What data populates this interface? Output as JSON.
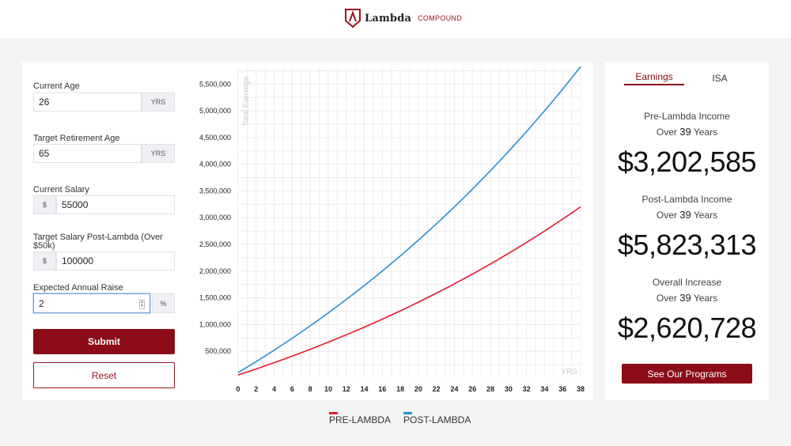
{
  "header": {
    "brand": "Lambda",
    "tag": "COMPOUND"
  },
  "form": {
    "age": {
      "label": "Current Age",
      "value": "26",
      "unit": "YRS"
    },
    "retire": {
      "label": "Target Retirement Age",
      "value": "65",
      "unit": "YRS"
    },
    "salary": {
      "label": "Current Salary",
      "value": "55000",
      "prefix": "$"
    },
    "target": {
      "label": "Target Salary Post-Lambda (Over $50k)",
      "value": "100000",
      "prefix": "$"
    },
    "raise": {
      "label": "Expected Annual Raise",
      "value": "2",
      "unit": "%"
    },
    "submit_label": "Submit",
    "reset_label": "Reset"
  },
  "results": {
    "tabs": [
      "Earnings",
      "ISA"
    ],
    "pre": {
      "title": "Pre-Lambda Income",
      "over": "Over",
      "years": "39",
      "years_word": "Years",
      "value": "$3,202,585"
    },
    "post": {
      "title": "Post-Lambda Income",
      "over": "Over",
      "years": "39",
      "years_word": "Years",
      "value": "$5,823,313"
    },
    "increase": {
      "title": "Overall Increase",
      "over": "Over",
      "years": "39",
      "years_word": "Years",
      "value": "$2,620,728"
    },
    "programs_label": "See Our Programs"
  },
  "legend": [
    {
      "name": "PRE-LAMBDA",
      "color": "#e8182f"
    },
    {
      "name": "POST-LAMBDA",
      "color": "#2a8fd0"
    }
  ],
  "chart_data": {
    "type": "line",
    "ylabel": "Total Earnings",
    "xlabel": "YRS",
    "xlim": [
      0,
      38
    ],
    "ylim": [
      0,
      5800000
    ],
    "xticks": [
      0,
      2,
      4,
      6,
      8,
      10,
      12,
      14,
      16,
      18,
      20,
      22,
      24,
      26,
      28,
      30,
      32,
      34,
      36,
      38
    ],
    "yticks": [
      500000,
      1000000,
      1500000,
      2000000,
      2500000,
      3000000,
      3500000,
      4000000,
      4500000,
      5000000,
      5500000
    ],
    "ytick_labels": [
      "500,000",
      "1,000,000",
      "1,500,000",
      "2,000,000",
      "2,500,000",
      "3,000,000",
      "3,500,000",
      "4,000,000",
      "4,500,000",
      "5,000,000",
      "5,500,000"
    ],
    "grid": true,
    "series": [
      {
        "name": "PRE-LAMBDA",
        "color": "#e8182f",
        "start": 55000,
        "growth": 0.02,
        "years": 39
      },
      {
        "name": "POST-LAMBDA",
        "color": "#2a8fd0",
        "start": 100000,
        "growth": 0.02,
        "years": 39
      }
    ]
  }
}
